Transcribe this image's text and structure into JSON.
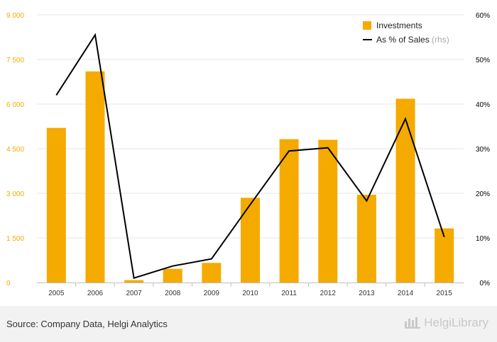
{
  "chart_data": {
    "type": "bar",
    "categories": [
      "2005",
      "2006",
      "2007",
      "2008",
      "2009",
      "2010",
      "2011",
      "2012",
      "2013",
      "2014",
      "2015"
    ],
    "series": [
      {
        "name": "Investments",
        "kind": "bar",
        "axis": "left",
        "values": [
          5200,
          7100,
          80,
          460,
          660,
          2850,
          4820,
          4800,
          2950,
          6180,
          1820
        ]
      },
      {
        "name": "As % of Sales",
        "name_suffix": "(rhs)",
        "kind": "line",
        "axis": "right",
        "values": [
          42,
          55.5,
          1,
          3.7,
          5.3,
          17.5,
          29.5,
          30.2,
          18.3,
          36.7,
          10.2
        ]
      }
    ],
    "left_axis": {
      "ylim": [
        0,
        9000
      ],
      "ticks": [
        0,
        1500,
        3000,
        4500,
        6000,
        7500,
        9000
      ],
      "tick_labels": [
        "0",
        "1 500",
        "3 000",
        "4 500",
        "6 000",
        "7 500",
        "9 000"
      ]
    },
    "right_axis": {
      "ylim": [
        0,
        60
      ],
      "ticks": [
        0,
        10,
        20,
        30,
        40,
        50,
        60
      ],
      "tick_labels": [
        "0%",
        "10%",
        "20%",
        "30%",
        "40%",
        "50%",
        "60%"
      ]
    },
    "grid": true,
    "legend_position": "top-right",
    "colors": {
      "bar": "#f5aa00",
      "line": "#000000",
      "left_tick": "#f5aa00",
      "grid": "#e6e6e6"
    }
  },
  "footer": {
    "source": "Source: Company Data, Helgi Analytics",
    "brand": "HelgiLibrary"
  }
}
